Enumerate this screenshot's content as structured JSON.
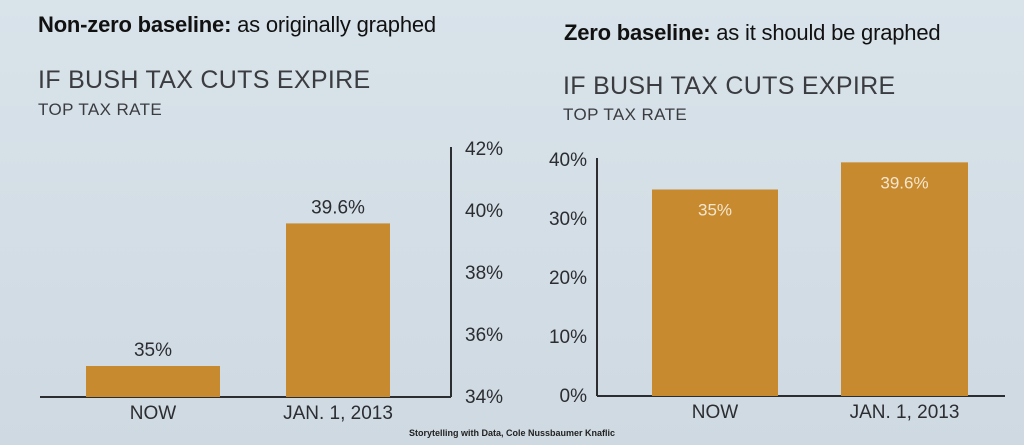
{
  "headings": {
    "left_bold": "Non-zero baseline:",
    "left_rest": " as originally graphed",
    "right_bold": "Zero baseline:",
    "right_rest": " as it should be graphed"
  },
  "credit": "Storytelling with Data, Cole Nussbaumer Knaflic",
  "colors": {
    "bar": "#c88a2e",
    "axis": "#2b2d31",
    "label_on_bar": "#f3e6cf"
  },
  "chart_data": [
    {
      "type": "bar",
      "title": "IF BUSH TAX CUTS EXPIRE",
      "subtitle": "TOP TAX RATE",
      "categories": [
        "NOW",
        "JAN. 1, 2013"
      ],
      "values": [
        35,
        39.6
      ],
      "data_labels": [
        "35%",
        "39.6%"
      ],
      "ylim": [
        34,
        42
      ],
      "yticks": [
        34,
        36,
        38,
        40,
        42
      ],
      "ytick_labels": [
        "34%",
        "36%",
        "38%",
        "40%",
        "42%"
      ],
      "yaxis_side": "right",
      "label_position": "above",
      "grid": false
    },
    {
      "type": "bar",
      "title": "IF BUSH TAX CUTS EXPIRE",
      "subtitle": "TOP TAX RATE",
      "categories": [
        "NOW",
        "JAN. 1, 2013"
      ],
      "values": [
        35,
        39.6
      ],
      "data_labels": [
        "35%",
        "39.6%"
      ],
      "ylim": [
        0,
        40
      ],
      "yticks": [
        0,
        10,
        20,
        30,
        40
      ],
      "ytick_labels": [
        "0%",
        "10%",
        "20%",
        "30%",
        "40%"
      ],
      "yaxis_side": "left",
      "label_position": "inside",
      "grid": false
    }
  ]
}
